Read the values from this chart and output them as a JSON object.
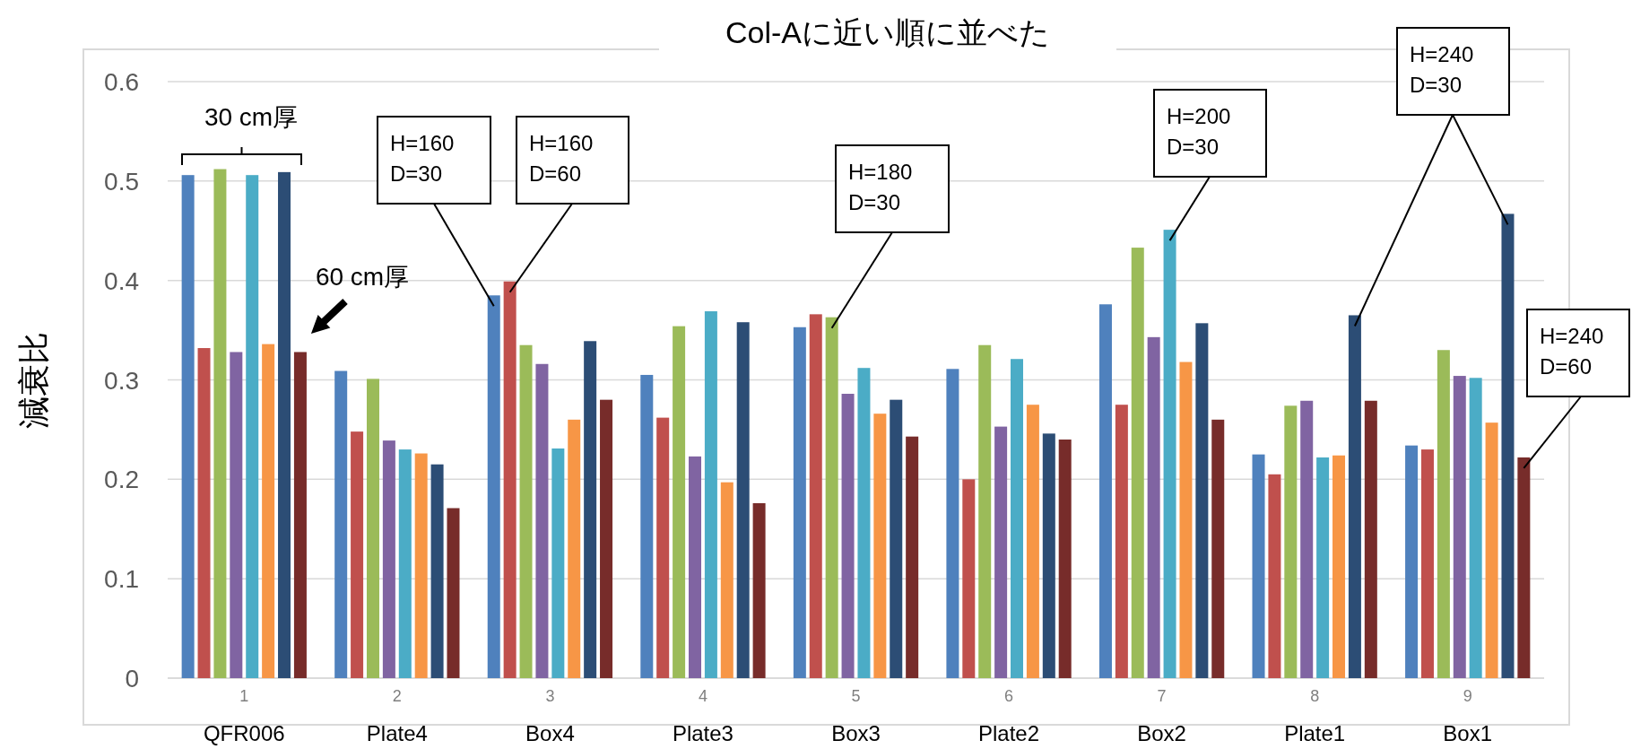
{
  "chart_data": {
    "type": "bar",
    "title": "Col-Aに近い順に並べた",
    "ylabel": "減衰比",
    "categories": [
      "1\nQFR006",
      "2\nPlate4",
      "3\nBox4",
      "4\nPlate3",
      "5\nBox3",
      "6\nPlate2",
      "7\nBox2",
      "8\nPlate1",
      "9\nBox1"
    ],
    "series": [
      {
        "color": "#4f81bd",
        "values": [
          0.506,
          0.309,
          0.385,
          0.305,
          0.353,
          0.311,
          0.376,
          0.225,
          0.234
        ]
      },
      {
        "color": "#c0504d",
        "values": [
          0.332,
          0.248,
          0.399,
          0.262,
          0.366,
          0.2,
          0.275,
          0.205,
          0.23
        ]
      },
      {
        "color": "#9bbb59",
        "values": [
          0.512,
          0.301,
          0.335,
          0.354,
          0.363,
          0.335,
          0.433,
          0.274,
          0.33
        ]
      },
      {
        "color": "#8064a2",
        "values": [
          0.328,
          0.239,
          0.316,
          0.223,
          0.286,
          0.253,
          0.343,
          0.279,
          0.304
        ]
      },
      {
        "color": "#4bacc6",
        "values": [
          0.506,
          0.23,
          0.231,
          0.369,
          0.312,
          0.321,
          0.451,
          0.222,
          0.302
        ]
      },
      {
        "color": "#f79646",
        "values": [
          0.336,
          0.226,
          0.26,
          0.197,
          0.266,
          0.275,
          0.318,
          0.224,
          0.257
        ]
      },
      {
        "color": "#2c4d75",
        "values": [
          0.509,
          0.215,
          0.339,
          0.358,
          0.28,
          0.246,
          0.357,
          0.365,
          0.467
        ]
      },
      {
        "color": "#772c2a",
        "values": [
          0.328,
          0.171,
          0.28,
          0.176,
          0.243,
          0.24,
          0.26,
          0.279,
          0.222
        ]
      }
    ],
    "ylim": [
      0,
      0.6
    ],
    "yticks": [
      0,
      0.1,
      0.2,
      0.3,
      0.4,
      0.5,
      0.6
    ],
    "grid": "y",
    "annotations": [
      "30 cm厚",
      "60 cm厚",
      "H=160\nD=30",
      "H=160\nD=60",
      "H=180\nD=30",
      "H=200\nD=30",
      "H=240\nD=30",
      "H=240\nD=60"
    ]
  }
}
